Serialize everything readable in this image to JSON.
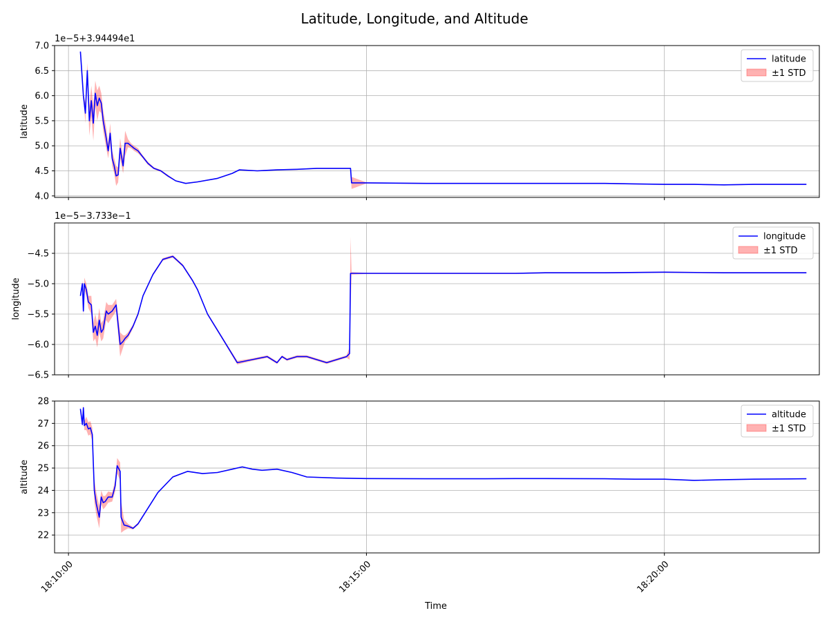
{
  "figure": {
    "title": "Latitude, Longitude, and Altitude",
    "xlabel": "Time",
    "series_color": "#0000ff",
    "band_color": "#ff0000"
  },
  "chart_data": [
    {
      "type": "line",
      "name": "latitude",
      "ylabel": "latitude",
      "offset_text": "1e−5+3.94494e1",
      "xlim": [
        "18:09:46",
        "18:22:36"
      ],
      "ylim": [
        3.97,
        7.0
      ],
      "x_ticks": [
        "18:10:00",
        "18:15:00",
        "18:20:00"
      ],
      "y_ticks": [
        4.0,
        4.5,
        5.0,
        5.5,
        6.0,
        6.5,
        7.0
      ],
      "y_tick_labels": [
        "4.0",
        "4.5",
        "5.0",
        "5.5",
        "6.0",
        "6.5",
        "7.0"
      ],
      "legend": [
        "latitude",
        "±1 STD"
      ],
      "legend_position": "upper right",
      "grid": true,
      "x": [
        "18:10:12",
        "18:10:15",
        "18:10:17",
        "18:10:19",
        "18:10:21",
        "18:10:23",
        "18:10:25",
        "18:10:27",
        "18:10:29",
        "18:10:31",
        "18:10:33",
        "18:10:35",
        "18:10:38",
        "18:10:40",
        "18:10:42",
        "18:10:44",
        "18:10:46",
        "18:10:48",
        "18:10:50",
        "18:10:52",
        "18:10:55",
        "18:10:57",
        "18:11:00",
        "18:11:03",
        "18:11:06",
        "18:11:10",
        "18:11:14",
        "18:11:20",
        "18:11:26",
        "18:11:33",
        "18:11:40",
        "18:11:48",
        "18:11:58",
        "18:12:10",
        "18:12:30",
        "18:12:45",
        "18:12:52",
        "18:13:10",
        "18:13:30",
        "18:13:50",
        "18:14:10",
        "18:14:30",
        "18:14:40",
        "18:14:44",
        "18:14:45",
        "18:15:00",
        "18:16:00",
        "18:17:00",
        "18:17:40",
        "18:18:00",
        "18:19:00",
        "18:19:30",
        "18:20:00",
        "18:20:30",
        "18:21:00",
        "18:21:30",
        "18:22:00",
        "18:22:23"
      ],
      "y": [
        6.88,
        6.0,
        5.65,
        6.5,
        5.5,
        5.9,
        5.45,
        6.05,
        5.8,
        5.95,
        5.85,
        5.5,
        5.15,
        4.9,
        5.25,
        4.75,
        4.6,
        4.4,
        4.42,
        4.95,
        4.6,
        5.05,
        5.05,
        5.0,
        4.95,
        4.9,
        4.8,
        4.65,
        4.55,
        4.5,
        4.4,
        4.3,
        4.25,
        4.28,
        4.35,
        4.45,
        4.52,
        4.5,
        4.52,
        4.53,
        4.55,
        4.55,
        4.55,
        4.55,
        4.26,
        4.26,
        4.25,
        4.25,
        4.25,
        4.25,
        4.25,
        4.24,
        4.23,
        4.23,
        4.22,
        4.23,
        4.23,
        4.23
      ],
      "std": [
        0.0,
        0.05,
        0.2,
        0.15,
        0.3,
        0.3,
        0.35,
        0.25,
        0.3,
        0.25,
        0.2,
        0.2,
        0.2,
        0.15,
        0.2,
        0.15,
        0.15,
        0.2,
        0.15,
        0.2,
        0.15,
        0.25,
        0.08,
        0.05,
        0.05,
        0.05,
        0.03,
        0.03,
        0.02,
        0.02,
        0.02,
        0.01,
        0.01,
        0.01,
        0.01,
        0.01,
        0.01,
        0.01,
        0.01,
        0.01,
        0.01,
        0.01,
        0.01,
        0.01,
        0.12,
        0.01,
        0.01,
        0.01,
        0.01,
        0.01,
        0.01,
        0.01,
        0.01,
        0.01,
        0.01,
        0.01,
        0.01,
        0.01
      ]
    },
    {
      "type": "line",
      "name": "longitude",
      "ylabel": "longitude",
      "offset_text": "1e−5−3.733e−1",
      "xlim": [
        "18:09:46",
        "18:22:36"
      ],
      "ylim": [
        -6.5,
        -4.0
      ],
      "x_ticks": [
        "18:10:00",
        "18:15:00",
        "18:20:00"
      ],
      "y_ticks": [
        -6.5,
        -6.0,
        -5.5,
        -5.0,
        -4.5
      ],
      "y_tick_labels": [
        "−6.5",
        "−6.0",
        "−5.5",
        "−5.0",
        "−4.5"
      ],
      "legend": [
        "longitude",
        "±1 STD"
      ],
      "legend_position": "upper right",
      "grid": true,
      "x": [
        "18:10:12",
        "18:10:14",
        "18:10:15",
        "18:10:16",
        "18:10:18",
        "18:10:20",
        "18:10:23",
        "18:10:25",
        "18:10:27",
        "18:10:29",
        "18:10:31",
        "18:10:33",
        "18:10:35",
        "18:10:38",
        "18:10:40",
        "18:10:44",
        "18:10:48",
        "18:10:52",
        "18:10:55",
        "18:10:57",
        "18:11:00",
        "18:11:05",
        "18:11:10",
        "18:11:15",
        "18:11:25",
        "18:11:35",
        "18:11:45",
        "18:11:55",
        "18:12:05",
        "18:12:10",
        "18:12:20",
        "18:12:35",
        "18:12:50",
        "18:13:05",
        "18:13:20",
        "18:13:30",
        "18:13:35",
        "18:13:40",
        "18:13:50",
        "18:14:00",
        "18:14:10",
        "18:14:20",
        "18:14:30",
        "18:14:40",
        "18:14:43",
        "18:14:44",
        "18:14:45",
        "18:15:00",
        "18:16:00",
        "18:17:00",
        "18:17:30",
        "18:18:00",
        "18:19:00",
        "18:20:00",
        "18:21:00",
        "18:21:30",
        "18:22:23"
      ],
      "y": [
        -5.2,
        -5.0,
        -5.45,
        -5.0,
        -5.1,
        -5.3,
        -5.35,
        -5.8,
        -5.7,
        -5.85,
        -5.6,
        -5.8,
        -5.75,
        -5.45,
        -5.5,
        -5.45,
        -5.35,
        -6.0,
        -5.95,
        -5.9,
        -5.85,
        -5.7,
        -5.5,
        -5.2,
        -4.85,
        -4.6,
        -4.55,
        -4.7,
        -4.95,
        -5.1,
        -5.5,
        -5.9,
        -6.3,
        -6.25,
        -6.2,
        -6.3,
        -6.2,
        -6.25,
        -6.2,
        -6.2,
        -6.25,
        -6.3,
        -6.25,
        -6.2,
        -6.15,
        -4.83,
        -4.83,
        -4.83,
        -4.83,
        -4.83,
        -4.83,
        -4.82,
        -4.82,
        -4.81,
        -4.82,
        -4.82,
        -4.82
      ],
      "std": [
        0.02,
        0.05,
        0.08,
        0.1,
        0.1,
        0.1,
        0.15,
        0.15,
        0.2,
        0.2,
        0.2,
        0.15,
        0.15,
        0.15,
        0.15,
        0.1,
        0.1,
        0.2,
        0.1,
        0.05,
        0.05,
        0.03,
        0.03,
        0.02,
        0.02,
        0.02,
        0.02,
        0.02,
        0.02,
        0.02,
        0.02,
        0.02,
        0.03,
        0.02,
        0.02,
        0.02,
        0.02,
        0.02,
        0.02,
        0.02,
        0.02,
        0.02,
        0.02,
        0.02,
        0.1,
        0.6,
        0.02,
        0.01,
        0.01,
        0.01,
        0.01,
        0.01,
        0.01,
        0.01,
        0.01,
        0.01,
        0.01
      ]
    },
    {
      "type": "line",
      "name": "altitude",
      "ylabel": "altitude",
      "offset_text": "",
      "xlim": [
        "18:09:46",
        "18:22:36"
      ],
      "ylim": [
        21.2,
        28.0
      ],
      "x_ticks": [
        "18:10:00",
        "18:15:00",
        "18:20:00"
      ],
      "x_tick_labels": [
        "18:10:00",
        "18:15:00",
        "18:20:00"
      ],
      "y_ticks": [
        22,
        23,
        24,
        25,
        26,
        27,
        28
      ],
      "y_tick_labels": [
        "22",
        "23",
        "24",
        "25",
        "26",
        "27",
        "28"
      ],
      "legend": [
        "altitude",
        "±1 STD"
      ],
      "legend_position": "upper right",
      "grid": true,
      "x": [
        "18:10:12",
        "18:10:14",
        "18:10:15",
        "18:10:16",
        "18:10:18",
        "18:10:20",
        "18:10:22",
        "18:10:24",
        "18:10:26",
        "18:10:28",
        "18:10:31",
        "18:10:33",
        "18:10:35",
        "18:10:37",
        "18:10:40",
        "18:10:44",
        "18:10:47",
        "18:10:49",
        "18:10:52",
        "18:10:53",
        "18:10:56",
        "18:11:00",
        "18:11:05",
        "18:11:10",
        "18:11:20",
        "18:11:30",
        "18:11:45",
        "18:12:00",
        "18:12:15",
        "18:12:30",
        "18:12:45",
        "18:12:55",
        "18:13:05",
        "18:13:15",
        "18:13:30",
        "18:13:45",
        "18:14:00",
        "18:14:30",
        "18:15:00",
        "18:16:00",
        "18:17:00",
        "18:17:30",
        "18:18:00",
        "18:19:00",
        "18:19:30",
        "18:20:00",
        "18:20:30",
        "18:21:00",
        "18:21:30",
        "18:22:23"
      ],
      "y": [
        27.65,
        26.95,
        27.7,
        26.9,
        27.0,
        26.75,
        26.8,
        26.5,
        24.0,
        23.4,
        22.8,
        23.7,
        23.45,
        23.5,
        23.7,
        23.7,
        24.2,
        25.1,
        24.85,
        22.8,
        22.45,
        22.4,
        22.3,
        22.5,
        23.2,
        23.9,
        24.6,
        24.85,
        24.75,
        24.8,
        24.95,
        25.05,
        24.95,
        24.9,
        24.95,
        24.8,
        24.6,
        24.55,
        24.53,
        24.52,
        24.52,
        24.53,
        24.53,
        24.52,
        24.5,
        24.5,
        24.45,
        24.48,
        24.5,
        24.52
      ],
      "std": [
        0.05,
        0.1,
        0.15,
        0.2,
        0.3,
        0.3,
        0.3,
        0.3,
        0.5,
        0.5,
        0.5,
        0.3,
        0.3,
        0.25,
        0.25,
        0.2,
        0.25,
        0.35,
        0.4,
        0.7,
        0.25,
        0.1,
        0.05,
        0.05,
        0.04,
        0.03,
        0.03,
        0.02,
        0.02,
        0.02,
        0.02,
        0.02,
        0.02,
        0.02,
        0.02,
        0.02,
        0.02,
        0.02,
        0.01,
        0.01,
        0.01,
        0.01,
        0.01,
        0.01,
        0.01,
        0.01,
        0.01,
        0.01,
        0.01,
        0.01
      ]
    }
  ]
}
